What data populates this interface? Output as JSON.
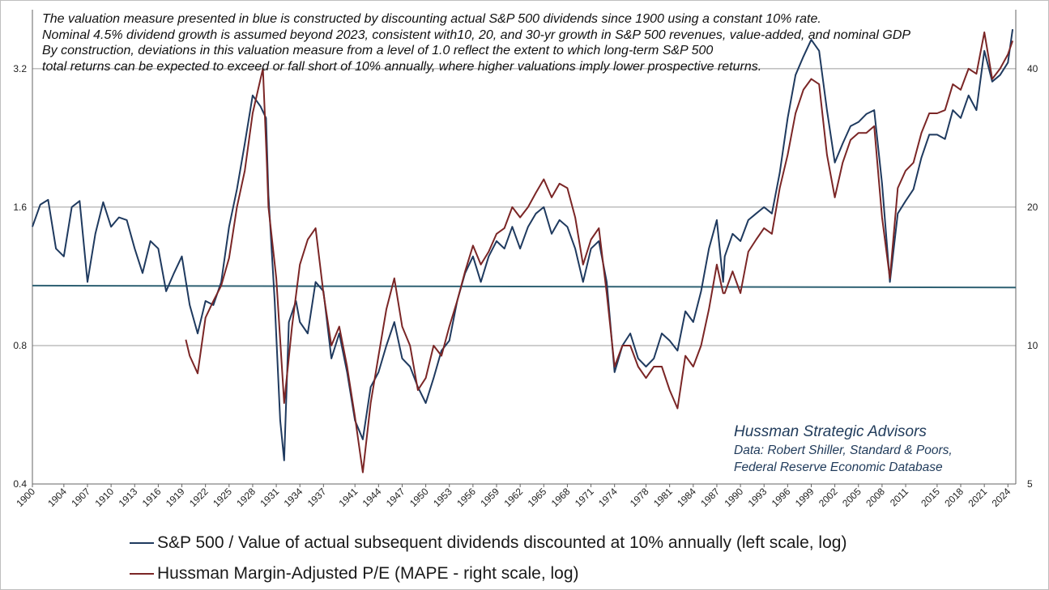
{
  "notes": [
    "The valuation measure presented in blue is constructed by discounting actual S&P 500 dividends since 1900 using a constant 10% rate.",
    "Nominal 4.5% dividend growth is assumed beyond 2023, consistent with10, 20, and 30-yr growth in S&P 500 revenues, value-added, and nominal GDP",
    "By construction, deviations in this valuation measure from a level of 1.0  reflect the extent to which long-term S&P 500",
    "total returns can be expected to exceed or fall short of 10% annually, where higher valuations imply lower prospective returns."
  ],
  "credit": [
    "Hussman Strategic Advisors",
    "Data: Robert Shiller, Standard & Poors,",
    "Federal Reserve Economic Database"
  ],
  "chart_data": {
    "type": "line",
    "title": "",
    "x_range": [
      1900,
      2025
    ],
    "x_tick_labels": [
      "1900",
      "1904",
      "1907",
      "1910",
      "1913",
      "1916",
      "1919",
      "1922",
      "1925",
      "1928",
      "1931",
      "1934",
      "1937",
      "1941",
      "1944",
      "1947",
      "1950",
      "1953",
      "1956",
      "1959",
      "1962",
      "1965",
      "1968",
      "1971",
      "1974",
      "1978",
      "1981",
      "1984",
      "1987",
      "1990",
      "1993",
      "1996",
      "1999",
      "2002",
      "2005",
      "2008",
      "2011",
      "2015",
      "2018",
      "2021",
      "2024"
    ],
    "y_left": {
      "scale": "log",
      "ticks": [
        0.4,
        0.8,
        1.6,
        3.2
      ],
      "tick_labels": [
        "0.4",
        "0.8",
        "1.6",
        "3.2"
      ],
      "range": [
        0.4,
        4.3
      ]
    },
    "y_right": {
      "scale": "log",
      "ticks": [
        5,
        10,
        20,
        40
      ],
      "tick_labels": [
        "5",
        "10",
        "20",
        "40"
      ],
      "range": [
        5,
        53.75
      ]
    },
    "grid": "horizontal",
    "reference_line": {
      "axis": "left",
      "value_1900": 1.08,
      "value_2025": 1.07
    },
    "colors": {
      "blue": "#1f3a5f",
      "red": "#7b2626",
      "reference": "#2f6173",
      "grid": "#9c9c9c"
    },
    "series": [
      {
        "name": "S&P 500 / Value of actual subsequent dividends discounted at 10% annually (left scale, log)",
        "axis": "left",
        "color": "#1f3a5f",
        "points": [
          [
            1900,
            1.45
          ],
          [
            1901,
            1.62
          ],
          [
            1902,
            1.66
          ],
          [
            1903,
            1.3
          ],
          [
            1904,
            1.25
          ],
          [
            1905,
            1.6
          ],
          [
            1906,
            1.65
          ],
          [
            1907,
            1.1
          ],
          [
            1908,
            1.4
          ],
          [
            1909,
            1.64
          ],
          [
            1910,
            1.45
          ],
          [
            1911,
            1.52
          ],
          [
            1912,
            1.5
          ],
          [
            1913,
            1.3
          ],
          [
            1914,
            1.15
          ],
          [
            1915,
            1.35
          ],
          [
            1916,
            1.3
          ],
          [
            1917,
            1.05
          ],
          [
            1918,
            1.15
          ],
          [
            1919,
            1.25
          ],
          [
            1920,
            0.98
          ],
          [
            1921,
            0.85
          ],
          [
            1922,
            1.0
          ],
          [
            1923,
            0.98
          ],
          [
            1924,
            1.1
          ],
          [
            1925,
            1.45
          ],
          [
            1926,
            1.75
          ],
          [
            1927,
            2.2
          ],
          [
            1928,
            2.8
          ],
          [
            1929,
            2.65
          ],
          [
            1929.7,
            2.5
          ],
          [
            1930,
            1.7
          ],
          [
            1930.8,
            1.0
          ],
          [
            1931.5,
            0.55
          ],
          [
            1932,
            0.45
          ],
          [
            1932.6,
            0.9
          ],
          [
            1933.5,
            1.0
          ],
          [
            1934,
            0.9
          ],
          [
            1935,
            0.85
          ],
          [
            1936,
            1.1
          ],
          [
            1937,
            1.05
          ],
          [
            1938,
            0.75
          ],
          [
            1939,
            0.85
          ],
          [
            1940,
            0.7
          ],
          [
            1941,
            0.55
          ],
          [
            1942,
            0.5
          ],
          [
            1943,
            0.65
          ],
          [
            1944,
            0.7
          ],
          [
            1945,
            0.8
          ],
          [
            1946,
            0.9
          ],
          [
            1947,
            0.75
          ],
          [
            1948,
            0.72
          ],
          [
            1949,
            0.65
          ],
          [
            1950,
            0.6
          ],
          [
            1951,
            0.68
          ],
          [
            1952,
            0.78
          ],
          [
            1953,
            0.82
          ],
          [
            1954,
            1.0
          ],
          [
            1955,
            1.15
          ],
          [
            1956,
            1.25
          ],
          [
            1957,
            1.1
          ],
          [
            1958,
            1.25
          ],
          [
            1959,
            1.35
          ],
          [
            1960,
            1.3
          ],
          [
            1961,
            1.45
          ],
          [
            1962,
            1.3
          ],
          [
            1963,
            1.45
          ],
          [
            1964,
            1.55
          ],
          [
            1965,
            1.6
          ],
          [
            1966,
            1.4
          ],
          [
            1967,
            1.5
          ],
          [
            1968,
            1.45
          ],
          [
            1969,
            1.3
          ],
          [
            1970,
            1.1
          ],
          [
            1971,
            1.3
          ],
          [
            1972,
            1.35
          ],
          [
            1973,
            1.1
          ],
          [
            1974,
            0.7
          ],
          [
            1975,
            0.8
          ],
          [
            1976,
            0.85
          ],
          [
            1977,
            0.75
          ],
          [
            1978,
            0.72
          ],
          [
            1979,
            0.75
          ],
          [
            1980,
            0.85
          ],
          [
            1981,
            0.82
          ],
          [
            1982,
            0.78
          ],
          [
            1983,
            0.95
          ],
          [
            1984,
            0.9
          ],
          [
            1985,
            1.05
          ],
          [
            1986,
            1.3
          ],
          [
            1987,
            1.5
          ],
          [
            1987.8,
            1.1
          ],
          [
            1988,
            1.25
          ],
          [
            1989,
            1.4
          ],
          [
            1990,
            1.35
          ],
          [
            1991,
            1.5
          ],
          [
            1992,
            1.55
          ],
          [
            1993,
            1.6
          ],
          [
            1994,
            1.55
          ],
          [
            1995,
            1.9
          ],
          [
            1996,
            2.5
          ],
          [
            1997,
            3.1
          ],
          [
            1998,
            3.4
          ],
          [
            1999,
            3.7
          ],
          [
            2000,
            3.5
          ],
          [
            2001,
            2.6
          ],
          [
            2002,
            2.0
          ],
          [
            2003,
            2.2
          ],
          [
            2004,
            2.4
          ],
          [
            2005,
            2.45
          ],
          [
            2006,
            2.55
          ],
          [
            2007,
            2.6
          ],
          [
            2008,
            1.8
          ],
          [
            2009,
            1.1
          ],
          [
            2010,
            1.55
          ],
          [
            2011,
            1.65
          ],
          [
            2012,
            1.75
          ],
          [
            2013,
            2.05
          ],
          [
            2014,
            2.3
          ],
          [
            2015,
            2.3
          ],
          [
            2016,
            2.25
          ],
          [
            2017,
            2.6
          ],
          [
            2018,
            2.5
          ],
          [
            2019,
            2.8
          ],
          [
            2020,
            2.6
          ],
          [
            2021,
            3.5
          ],
          [
            2022,
            3.0
          ],
          [
            2023,
            3.1
          ],
          [
            2024,
            3.3
          ],
          [
            2024.6,
            3.9
          ]
        ]
      },
      {
        "name": "Hussman Margin-Adjusted P/E (MAPE - right scale, log)",
        "axis": "right",
        "color": "#7b2626",
        "points": [
          [
            1919.5,
            10.3
          ],
          [
            1920,
            9.5
          ],
          [
            1921,
            8.7
          ],
          [
            1922,
            11.5
          ],
          [
            1923,
            12.5
          ],
          [
            1924,
            13.5
          ],
          [
            1925,
            15.5
          ],
          [
            1926,
            20.0
          ],
          [
            1927,
            24.0
          ],
          [
            1928,
            32.0
          ],
          [
            1929,
            38.0
          ],
          [
            1929.3,
            40.0
          ],
          [
            1929.8,
            25.0
          ],
          [
            1930,
            20.0
          ],
          [
            1931,
            14.0
          ],
          [
            1932,
            7.5
          ],
          [
            1933,
            11.0
          ],
          [
            1934,
            15.0
          ],
          [
            1935,
            17.0
          ],
          [
            1936,
            18.0
          ],
          [
            1937,
            13.0
          ],
          [
            1938,
            10.0
          ],
          [
            1939,
            11.0
          ],
          [
            1940,
            9.0
          ],
          [
            1941,
            7.0
          ],
          [
            1942,
            5.3
          ],
          [
            1943,
            7.5
          ],
          [
            1944,
            9.5
          ],
          [
            1945,
            12.0
          ],
          [
            1946,
            14.0
          ],
          [
            1947,
            11.0
          ],
          [
            1948,
            10.0
          ],
          [
            1949,
            8.0
          ],
          [
            1950,
            8.5
          ],
          [
            1951,
            10.0
          ],
          [
            1952,
            9.5
          ],
          [
            1953,
            11.0
          ],
          [
            1954,
            12.5
          ],
          [
            1955,
            14.5
          ],
          [
            1956,
            16.5
          ],
          [
            1957,
            15.0
          ],
          [
            1958,
            16.0
          ],
          [
            1959,
            17.5
          ],
          [
            1960,
            18.0
          ],
          [
            1961,
            20.0
          ],
          [
            1962,
            19.0
          ],
          [
            1963,
            20.0
          ],
          [
            1964,
            21.5
          ],
          [
            1965,
            23.0
          ],
          [
            1966,
            21.0
          ],
          [
            1967,
            22.5
          ],
          [
            1968,
            22.0
          ],
          [
            1969,
            19.0
          ],
          [
            1970,
            15.0
          ],
          [
            1971,
            17.0
          ],
          [
            1972,
            18.0
          ],
          [
            1973,
            13.0
          ],
          [
            1974,
            9.0
          ],
          [
            1975,
            10.0
          ],
          [
            1976,
            10.0
          ],
          [
            1977,
            9.0
          ],
          [
            1978,
            8.5
          ],
          [
            1979,
            9.0
          ],
          [
            1980,
            9.0
          ],
          [
            1981,
            8.0
          ],
          [
            1982,
            7.3
          ],
          [
            1983,
            9.5
          ],
          [
            1984,
            9.0
          ],
          [
            1985,
            10.0
          ],
          [
            1986,
            12.0
          ],
          [
            1987,
            15.0
          ],
          [
            1987.8,
            13.0
          ],
          [
            1988,
            13.0
          ],
          [
            1989,
            14.5
          ],
          [
            1990,
            13.0
          ],
          [
            1991,
            16.0
          ],
          [
            1992,
            17.0
          ],
          [
            1993,
            18.0
          ],
          [
            1994,
            17.5
          ],
          [
            1995,
            22.0
          ],
          [
            1996,
            26.0
          ],
          [
            1997,
            32.0
          ],
          [
            1998,
            36.0
          ],
          [
            1999,
            38.0
          ],
          [
            2000,
            37.0
          ],
          [
            2001,
            26.0
          ],
          [
            2002,
            21.0
          ],
          [
            2003,
            25.0
          ],
          [
            2004,
            28.0
          ],
          [
            2005,
            29.0
          ],
          [
            2006,
            29.0
          ],
          [
            2007,
            30.0
          ],
          [
            2008,
            19.0
          ],
          [
            2009,
            14.0
          ],
          [
            2010,
            22.0
          ],
          [
            2011,
            24.0
          ],
          [
            2012,
            25.0
          ],
          [
            2013,
            29.0
          ],
          [
            2014,
            32.0
          ],
          [
            2015,
            32.0
          ],
          [
            2016,
            32.5
          ],
          [
            2017,
            37.0
          ],
          [
            2018,
            36.0
          ],
          [
            2019,
            40.0
          ],
          [
            2020,
            39.0
          ],
          [
            2021,
            48.0
          ],
          [
            2022,
            38.0
          ],
          [
            2023,
            40.0
          ],
          [
            2024,
            43.0
          ],
          [
            2024.6,
            46.0
          ]
        ]
      }
    ]
  }
}
